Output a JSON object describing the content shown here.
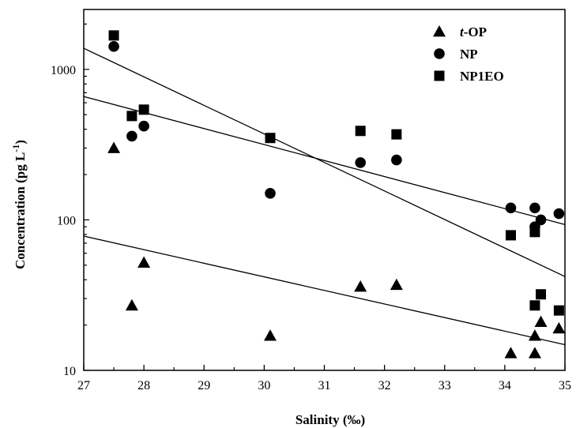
{
  "chart_data": {
    "type": "scatter",
    "xlabel": "Salinity (‰)",
    "ylabel": "Concentration (pg L",
    "ylabel_superscript": "-1",
    "ylabel_close": ")",
    "xlim": [
      27,
      35
    ],
    "ylim": [
      10,
      2500
    ],
    "yscale": "log",
    "grid": false,
    "legend_position": "top-right",
    "x_ticks": [
      27,
      28,
      29,
      30,
      31,
      32,
      33,
      34,
      35
    ],
    "y_ticks": [
      10,
      100,
      1000
    ],
    "series": [
      {
        "name": "t-OP",
        "name_italic": "t",
        "name_rest": "-OP",
        "marker": "triangle",
        "points": [
          [
            27.5,
            300
          ],
          [
            27.8,
            27
          ],
          [
            28.0,
            52
          ],
          [
            30.1,
            17
          ],
          [
            31.6,
            36
          ],
          [
            32.2,
            37
          ],
          [
            34.1,
            13
          ],
          [
            34.5,
            13
          ],
          [
            34.5,
            17
          ],
          [
            34.6,
            21
          ],
          [
            34.9,
            19
          ]
        ],
        "trend": [
          [
            27.0,
            78
          ],
          [
            35.0,
            14.8
          ]
        ]
      },
      {
        "name": "NP",
        "marker": "circle",
        "points": [
          [
            27.5,
            1420
          ],
          [
            27.8,
            360
          ],
          [
            28.0,
            420
          ],
          [
            30.1,
            150
          ],
          [
            31.6,
            240
          ],
          [
            32.2,
            250
          ],
          [
            34.1,
            120
          ],
          [
            34.5,
            120
          ],
          [
            34.5,
            90
          ],
          [
            34.6,
            100
          ],
          [
            34.9,
            110
          ]
        ],
        "trend": [
          [
            27.0,
            660
          ],
          [
            35.0,
            93
          ]
        ]
      },
      {
        "name": "NP1EO",
        "marker": "square",
        "points": [
          [
            27.5,
            1680
          ],
          [
            27.8,
            490
          ],
          [
            28.0,
            540
          ],
          [
            30.1,
            350
          ],
          [
            31.6,
            390
          ],
          [
            32.2,
            370
          ],
          [
            34.1,
            79
          ],
          [
            34.5,
            83
          ],
          [
            34.5,
            27
          ],
          [
            34.6,
            32
          ],
          [
            34.9,
            25
          ]
        ],
        "trend": [
          [
            27.0,
            1380
          ],
          [
            35.0,
            42
          ]
        ]
      }
    ]
  }
}
